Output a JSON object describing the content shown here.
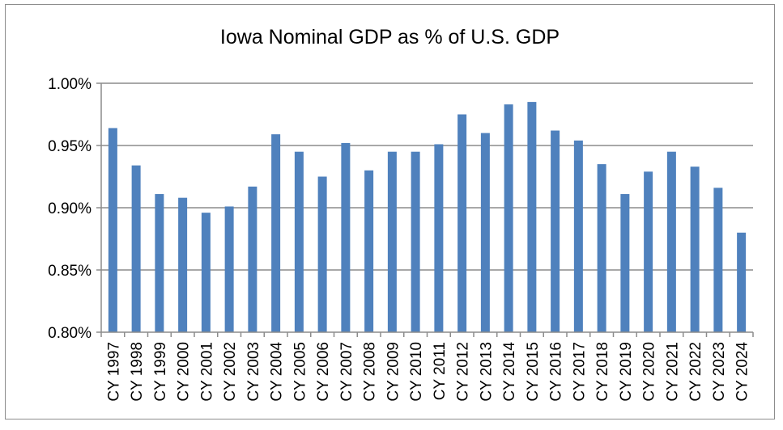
{
  "chart_data": {
    "type": "bar",
    "title": "Iowa Nominal GDP as % of U.S. GDP",
    "xlabel": "",
    "ylabel": "",
    "ylim": [
      0.8,
      1.0
    ],
    "yticks": [
      "0.80%",
      "0.85%",
      "0.90%",
      "0.95%",
      "1.00%"
    ],
    "grid": true,
    "bar_color": "#4f81bd",
    "categories": [
      "CY 1997",
      "CY 1998",
      "CY 1999",
      "CY 2000",
      "CY 2001",
      "CY 2002",
      "CY 2003",
      "CY 2004",
      "CY 2005",
      "CY 2006",
      "CY 2007",
      "CY 2008",
      "CY 2009",
      "CY 2010",
      "CY 2011",
      "CY 2012",
      "CY 2013",
      "CY 2014",
      "CY 2015",
      "CY 2016",
      "CY 2017",
      "CY 2018",
      "CY 2019",
      "CY 2020",
      "CY 2021",
      "CY 2022",
      "CY 2023",
      "CY 2024"
    ],
    "values": [
      0.964,
      0.934,
      0.911,
      0.908,
      0.896,
      0.901,
      0.917,
      0.959,
      0.945,
      0.925,
      0.952,
      0.93,
      0.945,
      0.945,
      0.951,
      0.975,
      0.96,
      0.983,
      0.985,
      0.962,
      0.954,
      0.935,
      0.911,
      0.929,
      0.945,
      0.933,
      0.916,
      0.88
    ]
  }
}
